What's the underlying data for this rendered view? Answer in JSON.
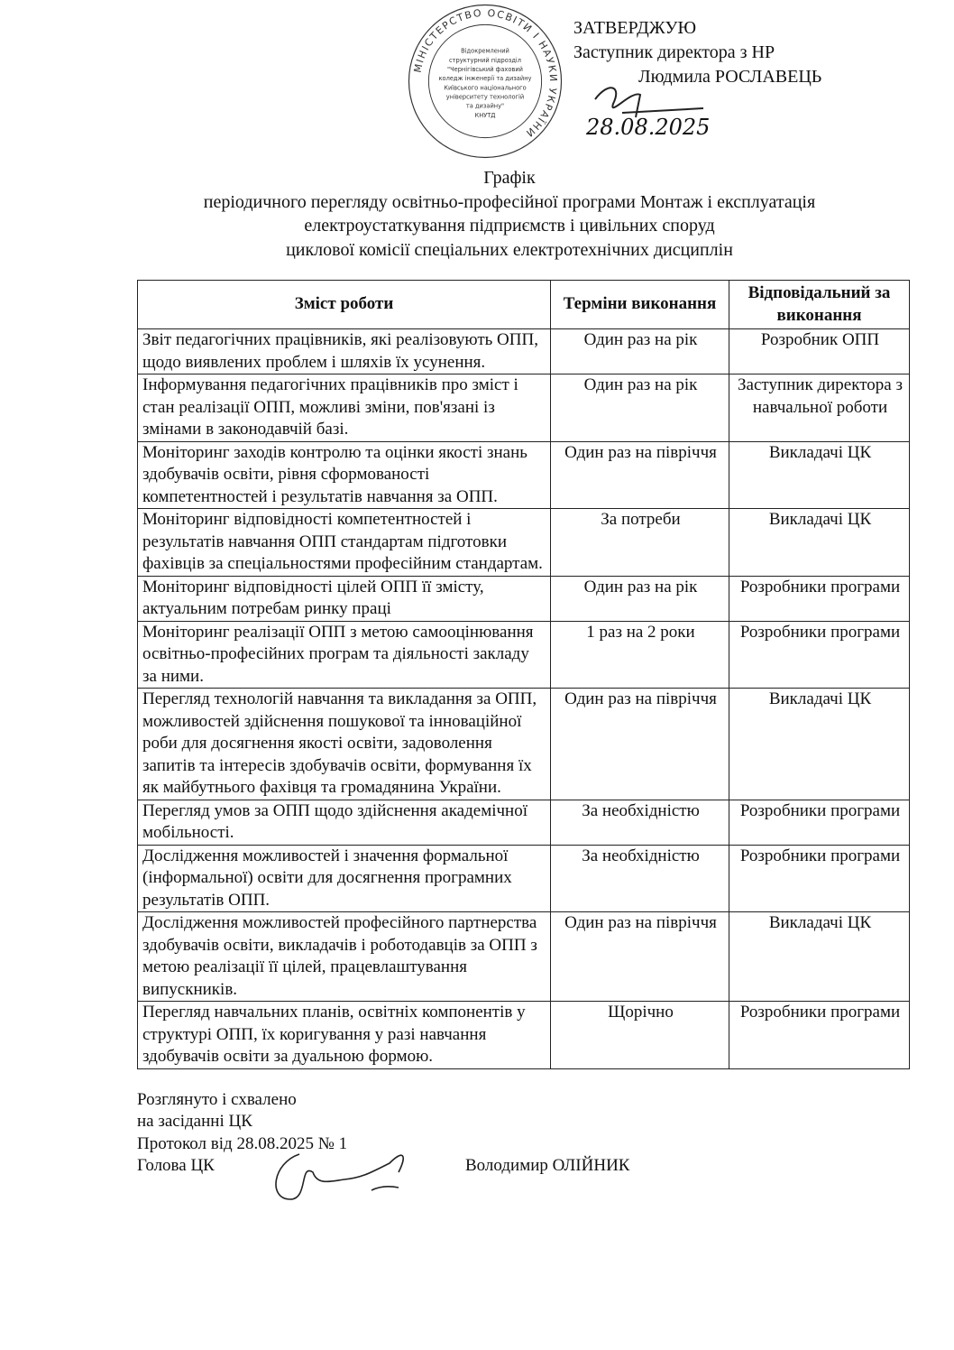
{
  "approval": {
    "heading": "ЗАТВЕРДЖУЮ",
    "position": "Заступник директора з НР",
    "name": "Людмила РОСЛАВЕЦЬ",
    "date_handwritten": "28.08.2025"
  },
  "stamp": {
    "ring": "МІНІСТЕРСТВО ОСВІТИ І НАУКИ УКРАЇНИ",
    "lines": [
      "Відокремлений",
      "структурний підрозділ",
      "\"Чернігівський фаховий",
      "коледж інженерії та дизайну",
      "Київського національного",
      "університету технологій",
      "та дизайну\"",
      "КНУТД"
    ]
  },
  "title": {
    "heading": "Графік",
    "line1": "періодичного перегляду освітньо-професійної програми Монтаж і експлуатація",
    "line2": "електроустаткування підприємств і цивільних споруд",
    "line3": "циклової комісії спеціальних електротехнічних дисциплін"
  },
  "table": {
    "headers": [
      "Зміст роботи",
      "Терміни виконання",
      "Відповідальний за виконання"
    ],
    "rows": [
      [
        "Звіт педагогічних працівників, які реалізовують ОПП, щодо виявлених проблем і шляхів їх усунення.",
        "Один раз на рік",
        "Розробник ОПП"
      ],
      [
        "Інформування педагогічних працівників про зміст і стан реалізації ОПП, можливі зміни, пов'язані із змінами в законодавчій базі.",
        "Один раз на рік",
        "Заступник директора з навчальної роботи"
      ],
      [
        "Моніторинг заходів контролю та оцінки якості знань здобувачів освіти, рівня сформованості компетентностей і результатів навчання за ОПП.",
        "Один раз на півріччя",
        "Викладачі ЦК"
      ],
      [
        "Моніторинг відповідності компетентностей і результатів навчання ОПП стандартам підготовки фахівців за спеціальностями професійним стандартам.",
        "За потреби",
        "Викладачі ЦК"
      ],
      [
        "Моніторинг відповідності цілей ОПП її змісту, актуальним потребам ринку праці",
        "Один раз на рік",
        "Розробники програми"
      ],
      [
        "Моніторинг реалізації ОПП з метою самооцінювання освітньо-професійних програм та діяльності закладу за ними.",
        "1 раз на 2 роки",
        "Розробники програми"
      ],
      [
        "Перегляд технологій навчання та викладання за ОПП, можливостей здійснення пошукової та інноваційної роби для досягнення якості освіти, задоволення запитів та інтересів здобувачів освіти, формування їх як майбутнього фахівця та громадянина України.",
        "Один раз на півріччя",
        "Викладачі ЦК"
      ],
      [
        "Перегляд умов за ОПП щодо здійснення академічної мобільності.",
        "За необхідністю",
        "Розробники програми"
      ],
      [
        "Дослідження можливостей і значення формальної (інформальної) освіти для досягнення програмних результатів ОПП.",
        "За необхідністю",
        "Розробники програми"
      ],
      [
        "Дослідження можливостей професійного партнерства здобувачів освіти, викладачів і роботодавців за ОПП з метою реалізації її цілей, працевлаштування випускників.",
        "Один раз на півріччя",
        "Викладачі ЦК"
      ],
      [
        "Перегляд навчальних планів, освітніх компонентів у структурі ОПП, їх коригування у разі навчання здобувачів освіти за дуальною формою.",
        "Щорічно",
        "Розробники програми"
      ]
    ]
  },
  "footer": {
    "line1": "Розглянуто і схвалено",
    "line2": "на засіданні ЦК",
    "line3": "Протокол від 28.08.2025 № 1",
    "line4": "Голова ЦК",
    "chair_name": "Володимир ОЛІЙНИК"
  }
}
